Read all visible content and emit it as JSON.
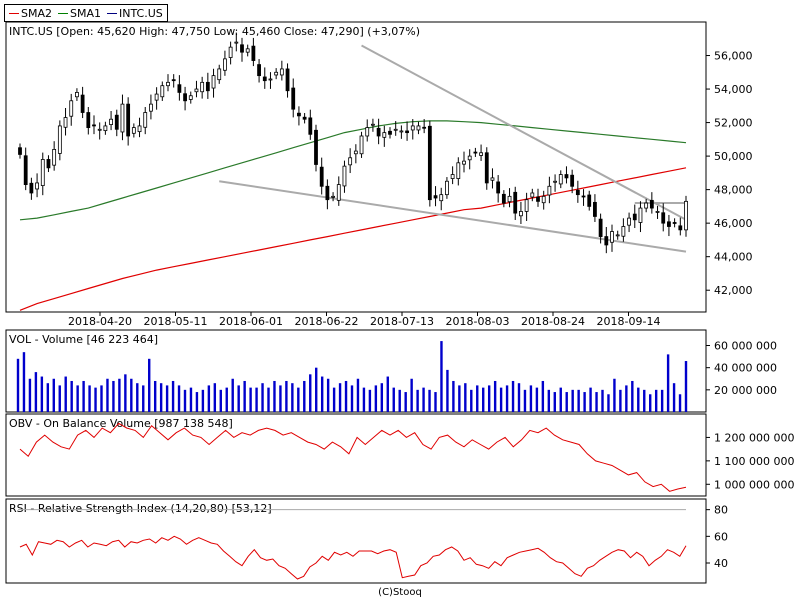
{
  "legend": [
    {
      "label": "SMA2",
      "color": "#e00000"
    },
    {
      "label": "SMA1",
      "color": "#008000"
    },
    {
      "label": "INTC.US",
      "color": "#000080"
    }
  ],
  "footer": "(C)Stooq",
  "colors": {
    "candle_up": "#ffffff",
    "candle_down": "#000000",
    "volume": "#0000cc",
    "sma2": "#e00000",
    "sma1": "#2a7a2a",
    "trend": "#aaaaaa",
    "obv": "#e00000",
    "rsi": "#e00000"
  },
  "chart_data": [
    {
      "type": "candlestick",
      "header": "INTC.US [Open: 45,620  High: 47,750  Low: 45,460  Close: 47,290]  (+3,07%)",
      "ticker": "INTC.US",
      "last_bar": {
        "open": 45.62,
        "high": 47.75,
        "low": 45.46,
        "close": 47.29,
        "change_pct": "+3,07%"
      },
      "x_tick_labels": [
        "2018-04-20",
        "2018-05-11",
        "2018-06-01",
        "2018-06-22",
        "2018-07-13",
        "2018-08-03",
        "2018-08-24",
        "2018-09-14"
      ],
      "y_tick_labels": [
        "42,000",
        "44,000",
        "46,000",
        "48,000",
        "50,000",
        "52,000",
        "54,000",
        "56,000"
      ],
      "y_ticks": [
        42000,
        44000,
        46000,
        48000,
        50000,
        52000,
        54000,
        56000
      ],
      "ylim": [
        40700,
        58000
      ],
      "close": [
        50.1,
        48.3,
        47.8,
        48.4,
        49.8,
        49.3,
        50.4,
        51.8,
        52.3,
        53.3,
        53.8,
        52.6,
        51.7,
        51.8,
        51.6,
        51.8,
        52.2,
        51.6,
        53.1,
        51.2,
        51.7,
        51.8,
        52.6,
        53.1,
        53.7,
        54.2,
        54.4,
        54.5,
        53.8,
        53.3,
        53.6,
        54.0,
        54.4,
        53.9,
        54.8,
        55.2,
        55.8,
        56.5,
        56.8,
        56.2,
        56.4,
        55.7,
        54.8,
        54.5,
        54.6,
        55.0,
        55.2,
        53.9,
        52.8,
        52.4,
        52.2,
        51.3,
        49.5,
        48.2,
        47.4,
        47.6,
        48.3,
        49.4,
        49.9,
        50.3,
        51.2,
        51.7,
        51.9,
        51.2,
        51.4,
        51.3,
        51.6,
        51.5,
        51.4,
        51.8,
        51.8,
        51.7,
        47.4,
        47.5,
        47.7,
        48.5,
        48.9,
        49.6,
        49.7,
        50.0,
        50.2,
        50.2,
        48.4,
        48.7,
        47.8,
        47.2,
        47.6,
        46.6,
        46.7,
        47.4,
        47.8,
        47.3,
        47.6,
        48.2,
        48.5,
        48.9,
        48.7,
        48.2,
        47.7,
        47.6,
        47.0,
        46.4,
        45.2,
        44.7,
        45.5,
        45.3,
        45.8,
        46.3,
        46.2,
        46.9,
        47.2,
        46.9,
        46.7,
        46.0,
        45.8,
        46.0,
        45.6,
        47.3
      ],
      "sma2": [
        40.8,
        41.2,
        41.5,
        41.8,
        42.1,
        42.4,
        42.7,
        42.95,
        43.2,
        43.4,
        43.6,
        43.8,
        44.0,
        44.2,
        44.4,
        44.6,
        44.8,
        45.0,
        45.2,
        45.4,
        45.6,
        45.8,
        46.0,
        46.2,
        46.4,
        46.6,
        46.8,
        46.9,
        47.1,
        47.3,
        47.5,
        47.7,
        47.9,
        48.1,
        48.3,
        48.5,
        48.7,
        48.9,
        49.1,
        49.3
      ],
      "sma1": [
        46.2,
        46.3,
        46.5,
        46.7,
        46.9,
        47.2,
        47.5,
        47.8,
        48.1,
        48.4,
        48.7,
        49.0,
        49.3,
        49.6,
        49.9,
        50.2,
        50.5,
        50.8,
        51.1,
        51.4,
        51.6,
        51.8,
        51.95,
        52.05,
        52.1,
        52.1,
        52.05,
        52.0,
        51.9,
        51.8,
        51.7,
        51.6,
        51.5,
        51.4,
        51.3,
        51.2,
        51.1,
        51.0,
        50.9,
        50.8
      ],
      "trend_lines": [
        {
          "from": [
            60,
            56.6
          ],
          "to": [
            117,
            46.2
          ]
        },
        {
          "from": [
            35,
            48.5
          ],
          "to": [
            117,
            44.3
          ]
        },
        {
          "from": [
            108,
            47.2
          ],
          "to": [
            117,
            47.2
          ]
        }
      ]
    },
    {
      "type": "bar",
      "header": "VOL - Volume [46 223 464]",
      "y_tick_labels": [
        "20 000 000",
        "40 000 000",
        "60 000 000"
      ],
      "y_ticks": [
        20000000,
        40000000,
        60000000
      ],
      "ylim": [
        0,
        74000000
      ],
      "values": [
        48,
        54,
        30,
        36,
        32,
        26,
        30,
        24,
        32,
        28,
        24,
        28,
        24,
        22,
        24,
        30,
        28,
        30,
        34,
        30,
        26,
        24,
        48,
        28,
        26,
        24,
        28,
        24,
        20,
        22,
        18,
        20,
        24,
        26,
        20,
        22,
        30,
        24,
        28,
        22,
        22,
        26,
        22,
        28,
        24,
        28,
        26,
        22,
        28,
        34,
        40,
        32,
        30,
        22,
        26,
        28,
        24,
        30,
        22,
        20,
        24,
        26,
        32,
        22,
        20,
        18,
        30,
        20,
        22,
        20,
        18,
        64,
        38,
        28,
        24,
        26,
        20,
        24,
        22,
        24,
        28,
        22,
        24,
        28,
        26,
        20,
        24,
        22,
        28,
        20,
        18,
        22,
        18,
        20,
        20,
        18,
        22,
        18,
        20,
        16,
        30,
        20,
        24,
        28,
        22,
        20,
        16,
        20,
        20,
        52,
        26,
        16,
        46
      ]
    },
    {
      "type": "line",
      "header": "OBV - On Balance Volume [987 138 548]",
      "y_tick_labels": [
        "1 000 000 000",
        "1 100 000 000",
        "1 200 000 000"
      ],
      "y_ticks": [
        1000000000,
        1100000000,
        1200000000
      ],
      "ylim": [
        950000000,
        1300000000
      ],
      "values": [
        1150,
        1120,
        1180,
        1210,
        1180,
        1160,
        1150,
        1210,
        1230,
        1200,
        1240,
        1220,
        1260,
        1240,
        1230,
        1200,
        1250,
        1220,
        1190,
        1220,
        1240,
        1210,
        1200,
        1170,
        1200,
        1230,
        1200,
        1220,
        1210,
        1230,
        1240,
        1230,
        1210,
        1220,
        1200,
        1180,
        1170,
        1150,
        1180,
        1160,
        1130,
        1200,
        1170,
        1200,
        1230,
        1210,
        1230,
        1200,
        1220,
        1170,
        1150,
        1200,
        1210,
        1180,
        1160,
        1190,
        1170,
        1150,
        1180,
        1200,
        1160,
        1190,
        1230,
        1220,
        1240,
        1210,
        1190,
        1180,
        1170,
        1130,
        1100,
        1090,
        1080,
        1060,
        1040,
        1050,
        1010,
        990,
        1000,
        970,
        980,
        987
      ]
    },
    {
      "type": "line",
      "header": "RSI - Relative Strength Index (14,20,80) [53,12]",
      "y_tick_labels": [
        "40",
        "60",
        "80"
      ],
      "y_ticks": [
        40,
        60,
        80
      ],
      "ylim": [
        25,
        88
      ],
      "reference_line": 80,
      "values": [
        52,
        54,
        46,
        56,
        55,
        54,
        57,
        56,
        52,
        55,
        57,
        52,
        55,
        54,
        53,
        56,
        57,
        52,
        56,
        55,
        57,
        58,
        55,
        59,
        57,
        60,
        58,
        54,
        57,
        59,
        57,
        55,
        54,
        49,
        45,
        41,
        38,
        45,
        50,
        44,
        42,
        43,
        38,
        36,
        32,
        28,
        30,
        37,
        40,
        45,
        42,
        48,
        46,
        48,
        45,
        49,
        49,
        49,
        47,
        49,
        50,
        48,
        29,
        30,
        31,
        38,
        40,
        45,
        46,
        50,
        52,
        49,
        42,
        44,
        39,
        38,
        36,
        41,
        38,
        44,
        46,
        48,
        49,
        50,
        51,
        48,
        44,
        41,
        40,
        36,
        32,
        30,
        36,
        38,
        42,
        45,
        48,
        50,
        49,
        44,
        48,
        45,
        38,
        42,
        45,
        50,
        48,
        45,
        53
      ]
    }
  ]
}
